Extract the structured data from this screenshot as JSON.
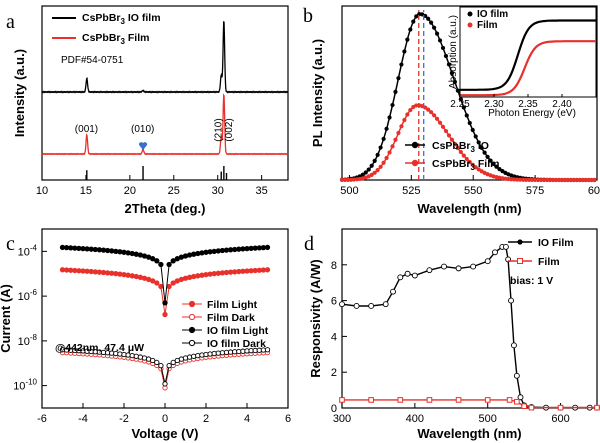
{
  "chart_data": [
    {
      "id": "a",
      "type": "line",
      "panel_label": "a",
      "xlabel": "2Theta (deg.)",
      "ylabel": "Intensity (a.u.)",
      "xlim": [
        10,
        38
      ],
      "xticks": [
        10,
        15,
        20,
        25,
        30,
        35
      ],
      "legend": [
        "CsPbBr3 IO film",
        "CsPbBr3 Film"
      ],
      "legend_display": [
        [
          "CsPbBr",
          "3",
          " IO film"
        ],
        [
          "CsPbBr",
          "3",
          " Film"
        ]
      ],
      "ref_label": "PDF#54-0751",
      "series": [
        {
          "name": "CsPbBr3 IO film",
          "color": "#000000",
          "baseline": 0.0,
          "peaks": [
            [
              15.1,
              0.18
            ],
            [
              21.5,
              0.02
            ],
            [
              30.4,
              0.22
            ],
            [
              30.7,
              0.95
            ]
          ]
        },
        {
          "name": "CsPbBr3 Film",
          "color": "#e8312a",
          "baseline": 0.0,
          "peaks": [
            [
              15.1,
              0.32
            ],
            [
              21.5,
              0.08
            ],
            [
              30.4,
              0.28
            ],
            [
              30.7,
              1.0
            ]
          ]
        }
      ],
      "reference_lines": [
        [
          15.1,
          0.7
        ],
        [
          21.5,
          1.0
        ],
        [
          30.4,
          0.6
        ],
        [
          30.7,
          1.0
        ],
        [
          31.0,
          0.5
        ]
      ],
      "annotations": [
        "(001)",
        "(010)",
        "(210)",
        "(002)"
      ],
      "marker_color": "#3b6fd1"
    },
    {
      "id": "b",
      "type": "line",
      "panel_label": "b",
      "xlabel": "Wavelength (nm)",
      "ylabel": "PL Intensity (a.u.)",
      "xlim": [
        497,
        600
      ],
      "xticks": [
        500,
        525,
        550,
        575,
        600
      ],
      "series": [
        {
          "name": "CsPbBr3 IO",
          "name_display": [
            "CsPbBr",
            "3",
            " IO"
          ],
          "color": "#000000",
          "center": 528.5,
          "amplitude": 1.0,
          "width": 11
        },
        {
          "name": "CsPbBr3 Film",
          "name_display": [
            "CsPbBr",
            "3",
            " Film"
          ],
          "color": "#e8312a",
          "center": 527.5,
          "amplitude": 0.45,
          "width": 10
        }
      ],
      "dashed_lines": [
        {
          "x": 528,
          "color": "#e8312a"
        },
        {
          "x": 530,
          "color": "#3b6fd1"
        }
      ],
      "inset": {
        "xlabel": "Photon Energy (eV)",
        "ylabel": "Absorption (a.u.)",
        "xlim": [
          2.25,
          2.45
        ],
        "xticks": [
          "2.25",
          "2.30",
          "2.35",
          "2.40"
        ],
        "legend": [
          "IO film",
          "Film"
        ],
        "series": [
          {
            "name": "IO film",
            "color": "#000000",
            "edge": 2.335,
            "low": 0.08,
            "high": 0.85
          },
          {
            "name": "Film",
            "color": "#e8312a",
            "edge": 2.345,
            "low": 0.02,
            "high": 0.62
          }
        ]
      }
    },
    {
      "id": "c",
      "type": "scatter",
      "panel_label": "c",
      "xlabel": "Voltage (V)",
      "ylabel": "Current (A)",
      "xlim": [
        -6,
        6
      ],
      "xticks": [
        -6,
        -4,
        -2,
        0,
        2,
        4,
        6
      ],
      "yscale": "log",
      "ylim": [
        1e-11,
        0.001
      ],
      "ytick_labels": [
        [
          "10",
          "-4",
          -4
        ],
        [
          "10",
          "-6",
          -6
        ],
        [
          "10",
          "-8",
          -8
        ],
        [
          "10",
          "-10",
          -10
        ]
      ],
      "annotation": "@442nm,  47.4 μW",
      "legend": [
        "Film Light",
        "Film Dark",
        "IO film Light",
        "IO film Dark"
      ],
      "series": [
        {
          "name": "Film Light",
          "color": "#e8312a",
          "filled": true,
          "I5": 1.5e-05,
          "I0": 1.5e-07
        },
        {
          "name": "Film Dark",
          "color": "#e8312a",
          "filled": false,
          "I5": 3e-09,
          "I0": 8e-11
        },
        {
          "name": "IO film Light",
          "color": "#000000",
          "filled": true,
          "I5": 0.00015,
          "I0": 5e-07
        },
        {
          "name": "IO film Dark",
          "color": "#000000",
          "filled": false,
          "I5": 4e-09,
          "I0": 1.2e-10
        }
      ]
    },
    {
      "id": "d",
      "type": "line",
      "panel_label": "d",
      "xlabel": "Wavelength (nm)",
      "ylabel": "Responsivity (A/W)",
      "xlim": [
        300,
        650
      ],
      "ylim": [
        0,
        10
      ],
      "xticks": [
        300,
        400,
        500,
        600
      ],
      "yticks": [
        0,
        2,
        4,
        6,
        8
      ],
      "annotation": "bias: 1 V",
      "legend": [
        "IO Film",
        "Film"
      ],
      "series": [
        {
          "name": "IO Film",
          "color": "#000000",
          "x": [
            300,
            320,
            340,
            360,
            370,
            380,
            390,
            400,
            420,
            440,
            460,
            480,
            500,
            510,
            520,
            525,
            528,
            532,
            536,
            540,
            545,
            550,
            560,
            580,
            600,
            620,
            640,
            650
          ],
          "y": [
            5.8,
            5.7,
            5.7,
            5.8,
            6.5,
            7.3,
            7.5,
            7.4,
            7.7,
            7.9,
            7.8,
            7.9,
            8.2,
            8.7,
            9.0,
            9.0,
            8.3,
            6.0,
            3.5,
            1.8,
            0.6,
            0.15,
            0.05,
            0.02,
            0.02,
            0.02,
            0.02,
            0.02
          ]
        },
        {
          "name": "Film",
          "color": "#e8312a",
          "x": [
            300,
            340,
            380,
            420,
            460,
            500,
            530,
            540,
            550,
            560,
            600,
            650
          ],
          "y": [
            0.45,
            0.45,
            0.45,
            0.45,
            0.45,
            0.45,
            0.45,
            0.35,
            0.1,
            0.02,
            0.02,
            0.02
          ]
        }
      ]
    }
  ]
}
